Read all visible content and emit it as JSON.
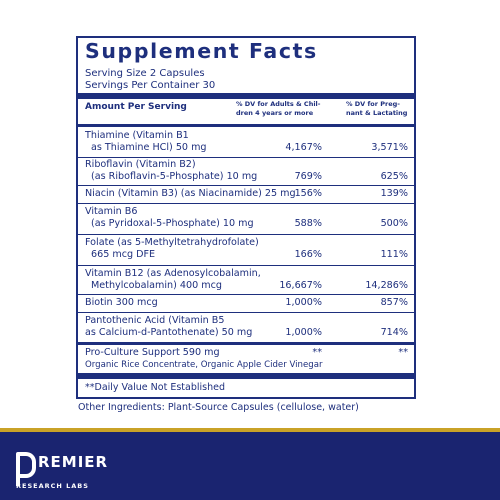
{
  "panel": {
    "title": "Supplement Facts",
    "serving_size": "Serving Size 2 Capsules",
    "servings_per_container": "Servings Per Container 30",
    "col_amount": "Amount Per Serving",
    "col_adults_line1": "% DV for Adults & Chil-",
    "col_adults_line2": "dren 4 years or more",
    "col_preg_line1": "% DV for Preg-",
    "col_preg_line2": "nant & Lactating",
    "rows": [
      {
        "line1": "Thiamine (Vitamin B1",
        "line2": "as Thiamine HCl)  50 mg",
        "dv_adult": "4,167%",
        "dv_preg": "3,571%"
      },
      {
        "line1": "Riboflavin (Vitamin B2)",
        "line2": "(as Riboflavin-5-Phosphate)    10 mg",
        "dv_adult": "769%",
        "dv_preg": "625%"
      },
      {
        "line1": "Niacin (Vitamin B3) (as Niacinamide) 25 mg",
        "line2": "",
        "dv_adult": "156%",
        "dv_preg": "139%"
      },
      {
        "line1": "Vitamin B6",
        "line2": "(as Pyridoxal-5-Phosphate)    10 mg",
        "dv_adult": "588%",
        "dv_preg": "500%"
      },
      {
        "line1": "Folate (as 5-Methyltetrahydrofolate)",
        "line2": "665 mcg DFE",
        "dv_adult": "166%",
        "dv_preg": "111%"
      },
      {
        "line1": "Vitamin B12 (as Adenosylcobalamin,",
        "line2": "Methylcobalamin)   400 mcg",
        "dv_adult": "16,667%",
        "dv_preg": "14,286%"
      },
      {
        "line1": "Biotin   300 mcg",
        "line2": "",
        "dv_adult": "1,000%",
        "dv_preg": "857%"
      },
      {
        "line1": "Pantothenic Acid (Vitamin B5",
        "line2": "as Calcium-d-Pantothenate)  50 mg",
        "dv_adult": "1,000%",
        "dv_preg": "714%"
      },
      {
        "line1": "Pro-Culture Support  590 mg",
        "line2": "Organic Rice Concentrate, Organic Apple Cider Vinegar",
        "dv_adult": "**",
        "dv_preg": "**"
      }
    ],
    "footnote": "**Daily Value Not Established"
  },
  "other_ingredients": "Other Ingredients: Plant-Source Capsules (cellulose, water)",
  "brand": {
    "name": "REMIER",
    "sub": "RESEARCH LABS",
    "band_color": "#1a2470",
    "accent_color": "#c9a227"
  }
}
